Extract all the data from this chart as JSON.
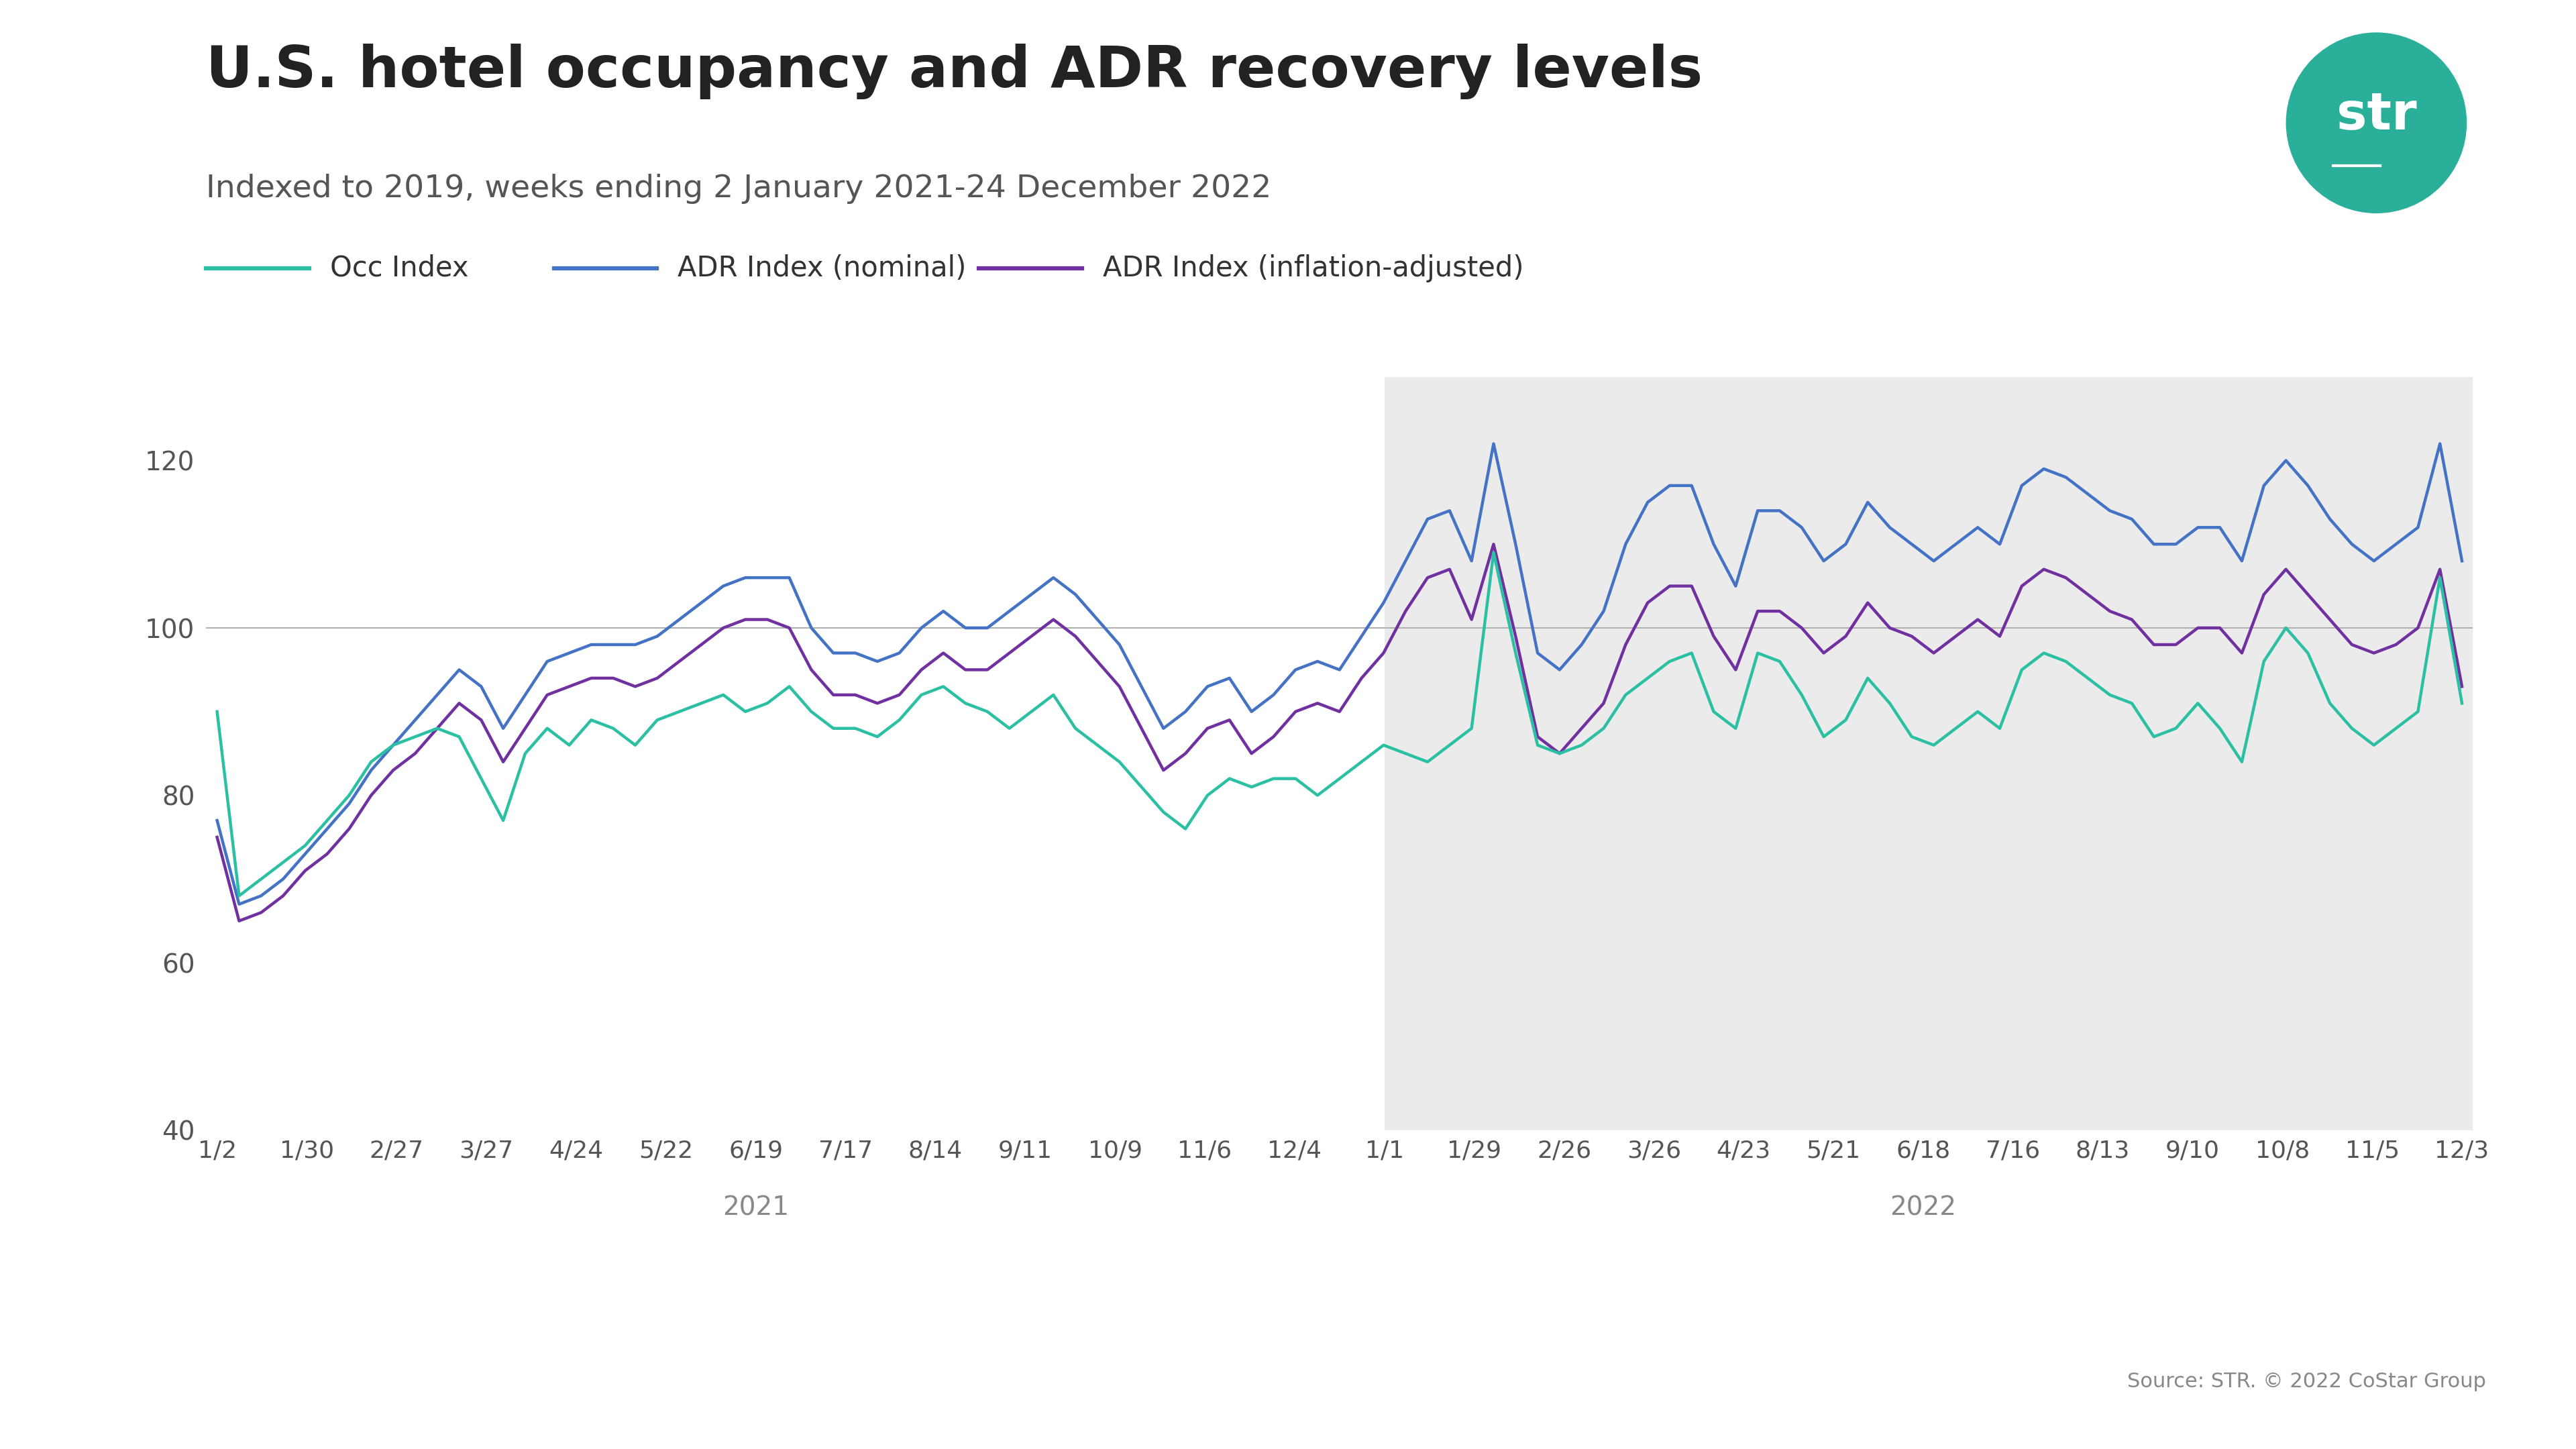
{
  "title": "U.S. hotel occupancy and ADR recovery levels",
  "subtitle": "Indexed to 2019, weeks ending 2 January 2021-24 December 2022",
  "source_text": "Source: STR. © 2022 CoStar Group",
  "legend_labels": [
    "Occ Index",
    "ADR Index (nominal)",
    "ADR Index (inflation-adjusted)"
  ],
  "occ_color": "#2bbfa4",
  "adr_nominal_color": "#4472c4",
  "adr_infl_color": "#7030a0",
  "background_color": "#ffffff",
  "shaded_region_color": "#ebebeb",
  "gridline_color": "#b0b0b0",
  "title_color": "#222222",
  "subtitle_color": "#555555",
  "tick_color": "#555555",
  "year_label_color": "#888888",
  "source_color": "#888888",
  "ylim": [
    40,
    130
  ],
  "yticks": [
    40,
    60,
    80,
    100,
    120
  ],
  "title_fontsize": 62,
  "subtitle_fontsize": 34,
  "tick_fontsize": 28,
  "legend_fontsize": 30,
  "source_fontsize": 22,
  "year_label_fontsize": 28,
  "xtick_labels_2021": [
    "1/2",
    "1/30",
    "2/27",
    "3/27",
    "4/24",
    "5/22",
    "6/19",
    "7/17",
    "8/14",
    "9/11",
    "10/9",
    "11/6",
    "12/4"
  ],
  "xtick_labels_2022": [
    "1/1",
    "1/29",
    "2/26",
    "3/26",
    "4/23",
    "5/21",
    "6/18",
    "7/16",
    "8/13",
    "9/10",
    "10/8",
    "11/5",
    "12/3"
  ],
  "occ_index": [
    90,
    68,
    70,
    72,
    74,
    77,
    80,
    84,
    86,
    87,
    88,
    87,
    82,
    77,
    85,
    88,
    86,
    89,
    88,
    86,
    89,
    90,
    91,
    92,
    90,
    91,
    93,
    90,
    88,
    88,
    87,
    89,
    92,
    93,
    91,
    90,
    88,
    90,
    92,
    88,
    86,
    84,
    81,
    78,
    76,
    80,
    82,
    81,
    82,
    82,
    80,
    82,
    84,
    86,
    85,
    84,
    86,
    88,
    109,
    97,
    86,
    85,
    86,
    88,
    92,
    94,
    96,
    97,
    90,
    88,
    97,
    96,
    92,
    87,
    89,
    94,
    91,
    87,
    86,
    88,
    90,
    88,
    95,
    97,
    96,
    94,
    92,
    91,
    87,
    88,
    91,
    88,
    84,
    96,
    100,
    97,
    91,
    88,
    86,
    88,
    90,
    106,
    91
  ],
  "adr_nominal_index": [
    77,
    67,
    68,
    70,
    73,
    76,
    79,
    83,
    86,
    89,
    92,
    95,
    93,
    88,
    92,
    96,
    97,
    98,
    98,
    98,
    99,
    101,
    103,
    105,
    106,
    106,
    106,
    100,
    97,
    97,
    96,
    97,
    100,
    102,
    100,
    100,
    102,
    104,
    106,
    104,
    101,
    98,
    93,
    88,
    90,
    93,
    94,
    90,
    92,
    95,
    96,
    95,
    99,
    103,
    108,
    113,
    114,
    108,
    122,
    110,
    97,
    95,
    98,
    102,
    110,
    115,
    117,
    117,
    110,
    105,
    114,
    114,
    112,
    108,
    110,
    115,
    112,
    110,
    108,
    110,
    112,
    110,
    117,
    119,
    118,
    116,
    114,
    113,
    110,
    110,
    112,
    112,
    108,
    117,
    120,
    117,
    113,
    110,
    108,
    110,
    112,
    122,
    108
  ],
  "adr_infl_index": [
    75,
    65,
    66,
    68,
    71,
    73,
    76,
    80,
    83,
    85,
    88,
    91,
    89,
    84,
    88,
    92,
    93,
    94,
    94,
    93,
    94,
    96,
    98,
    100,
    101,
    101,
    100,
    95,
    92,
    92,
    91,
    92,
    95,
    97,
    95,
    95,
    97,
    99,
    101,
    99,
    96,
    93,
    88,
    83,
    85,
    88,
    89,
    85,
    87,
    90,
    91,
    90,
    94,
    97,
    102,
    106,
    107,
    101,
    110,
    99,
    87,
    85,
    88,
    91,
    98,
    103,
    105,
    105,
    99,
    95,
    102,
    102,
    100,
    97,
    99,
    103,
    100,
    99,
    97,
    99,
    101,
    99,
    105,
    107,
    106,
    104,
    102,
    101,
    98,
    98,
    100,
    100,
    97,
    104,
    107,
    104,
    101,
    98,
    97,
    98,
    100,
    107,
    93
  ]
}
